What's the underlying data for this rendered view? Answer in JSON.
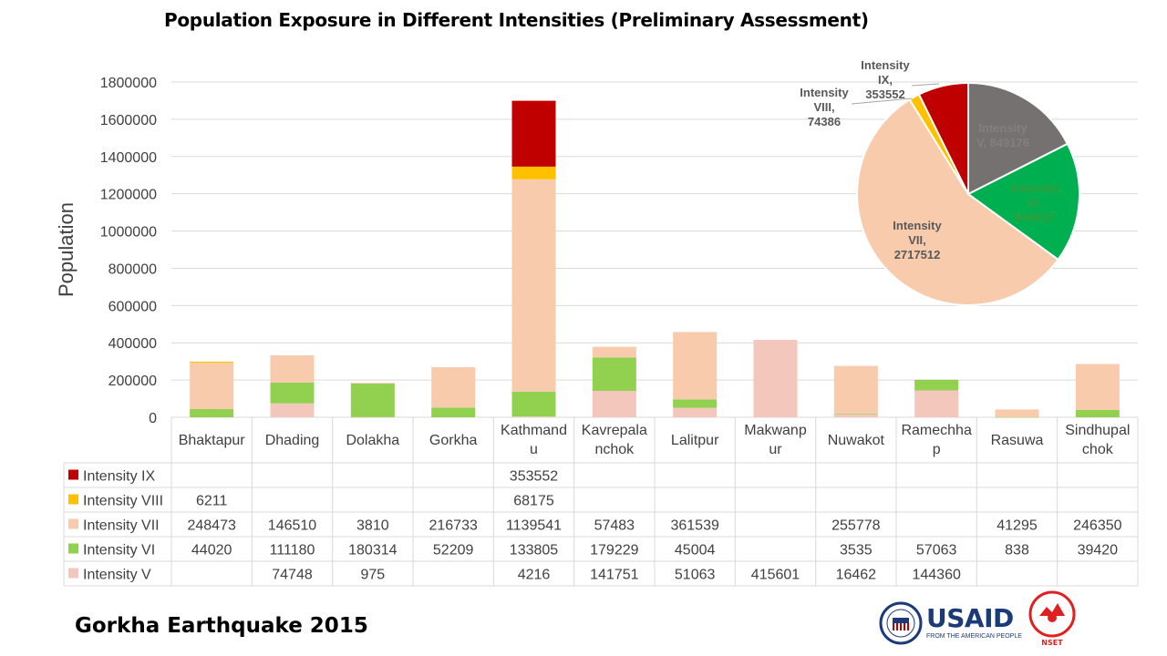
{
  "title": "Population Exposure in Different Intensities (Preliminary Assessment)",
  "footer": "Gorkha Earthquake 2015",
  "logos": {
    "usaid": "USAID",
    "usaid_tagline": "FROM THE AMERICAN PEOPLE",
    "nset": "NSET"
  },
  "colors": {
    "Intensity IX": "#c00000",
    "Intensity VIII": "#ffc000",
    "Intensity VII": "#f8cbad",
    "Intensity VI": "#92d050",
    "Intensity V": "#f4c7bc",
    "pie_V": "#767171",
    "pie_VI": "#00b050"
  },
  "chart_data": [
    {
      "type": "bar",
      "stacked": true,
      "ylabel": "Population",
      "ylim": [
        0,
        1800000
      ],
      "yticks": [
        0,
        200000,
        400000,
        600000,
        800000,
        1000000,
        1200000,
        1400000,
        1600000,
        1800000
      ],
      "grid": true,
      "categories": [
        "Bhaktapur",
        "Dhading",
        "Dolakha",
        "Gorkha",
        "Kathmandu",
        "Kavrepalanchok",
        "Lalitpur",
        "Makwanpur",
        "Nuwakot",
        "Ramechhap",
        "Rasuwa",
        "Sindhupalchok"
      ],
      "category_labels": [
        [
          "Bhaktapur"
        ],
        [
          "Dhading"
        ],
        [
          "Dolakha"
        ],
        [
          "Gorkha"
        ],
        [
          "Kathmand",
          "u"
        ],
        [
          "Kavrepala",
          "nchok"
        ],
        [
          "Lalitpur"
        ],
        [
          "Makwanp",
          "ur"
        ],
        [
          "Nuwakot"
        ],
        [
          "Ramechha",
          "p"
        ],
        [
          "Rasuwa"
        ],
        [
          "Sindhupal",
          "chok"
        ]
      ],
      "series": [
        {
          "name": "Intensity IX",
          "values": [
            null,
            null,
            null,
            null,
            353552,
            null,
            null,
            null,
            null,
            null,
            null,
            null
          ]
        },
        {
          "name": "Intensity VIII",
          "values": [
            6211,
            null,
            null,
            null,
            68175,
            null,
            null,
            null,
            null,
            null,
            null,
            null
          ]
        },
        {
          "name": "Intensity VII",
          "values": [
            248473,
            146510,
            3810,
            216733,
            1139541,
            57483,
            361539,
            null,
            255778,
            null,
            41295,
            246350
          ]
        },
        {
          "name": "Intensity VI",
          "values": [
            44020,
            111180,
            180314,
            52209,
            133805,
            179229,
            45004,
            null,
            3535,
            57063,
            838,
            39420
          ]
        },
        {
          "name": "Intensity V",
          "values": [
            null,
            74748,
            975,
            null,
            4216,
            141751,
            51063,
            415601,
            16462,
            144360,
            null,
            null
          ]
        }
      ],
      "legend": "data-table"
    },
    {
      "type": "pie",
      "slices": [
        {
          "label": [
            "Intensity",
            "V, 849176"
          ],
          "value": 849176
        },
        {
          "label": [
            "Intensity",
            "VI,",
            "846617"
          ],
          "value": 846617
        },
        {
          "label": [
            "Intensity",
            "VII,",
            "2717512"
          ],
          "value": 2717512
        },
        {
          "label": [
            "Intensity",
            "VIII,",
            "74386"
          ],
          "value": 74386
        },
        {
          "label": [
            "Intensity",
            "IX,",
            "353552"
          ],
          "value": 353552
        }
      ]
    }
  ]
}
